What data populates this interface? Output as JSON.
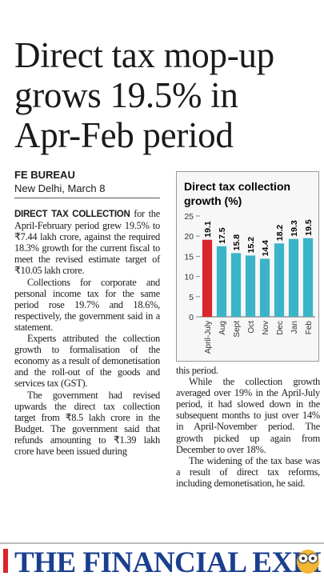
{
  "headline": [
    "Direct tax mop-up",
    "grows 19.5% in",
    "Apr-Feb period"
  ],
  "byline": {
    "agency": "FE BUREAU",
    "dateline": "New Delhi, March 8"
  },
  "body": {
    "left_column": [
      {
        "lead": "DIRECT TAX COLLECTION",
        "text": "for the April-February period grew 19.5% to ₹7.44 lakh crore, against the required 18.3% growth for the current fiscal to meet the revised estimate target of ₹10.05 lakh crore."
      },
      {
        "text": "Collections for corporate and personal income tax for the same period rose 19.7% and 18.6%, respectively, the government said in a statement."
      },
      {
        "text": "Experts attributed the collection growth to formalisation of the economy as a result of demonetisation and the roll-out of the goods and services tax (GST)."
      },
      {
        "text": "The government had revised upwards the direct tax collection target from ₹8.5 lakh crore in the Budget. The government said that refunds amounting to ₹1.39 lakh crore have been issued during"
      }
    ],
    "right_column": [
      {
        "text": "this period."
      },
      {
        "text": "While the collection growth averaged over 19% in the April-July period, it had slowed down in the subsequent months to just over 14% in April-November period. The growth picked up again from December to over 18%."
      },
      {
        "text": "The widening of the tax base was a result of direct tax reforms, including demonetisation, he said."
      }
    ]
  },
  "masthead": "THE FINANCIAL EXPI",
  "chart_data": {
    "type": "bar",
    "title": "Direct tax collection growth (%)",
    "categories": [
      "April-July",
      "Aug",
      "Sept",
      "Oct",
      "Nov",
      "Dec",
      "Jan",
      "Feb"
    ],
    "values": [
      19.1,
      17.5,
      15.8,
      15.2,
      14.4,
      18.2,
      19.3,
      19.5
    ],
    "colors": [
      "#d9252b",
      "#3ab4c6",
      "#3ab4c6",
      "#3ab4c6",
      "#3ab4c6",
      "#3ab4c6",
      "#3ab4c6",
      "#3ab4c6"
    ],
    "ylim": [
      0,
      25
    ],
    "yticks": [
      0,
      5,
      10,
      15,
      20,
      25
    ]
  }
}
